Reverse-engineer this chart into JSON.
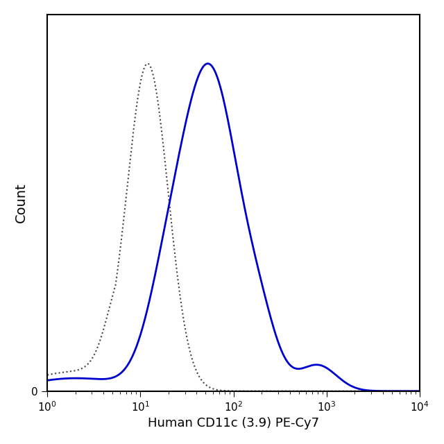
{
  "title": "",
  "xlabel": "Human CD11c (3.9) PE-Cy7",
  "ylabel": "Count",
  "xmin": 1,
  "xmax": 10000,
  "background_color": "#ffffff",
  "line_color_blue": "#0000cc",
  "line_color_gray": "#444444",
  "blue_linewidth": 2.0,
  "gray_linewidth": 1.5
}
